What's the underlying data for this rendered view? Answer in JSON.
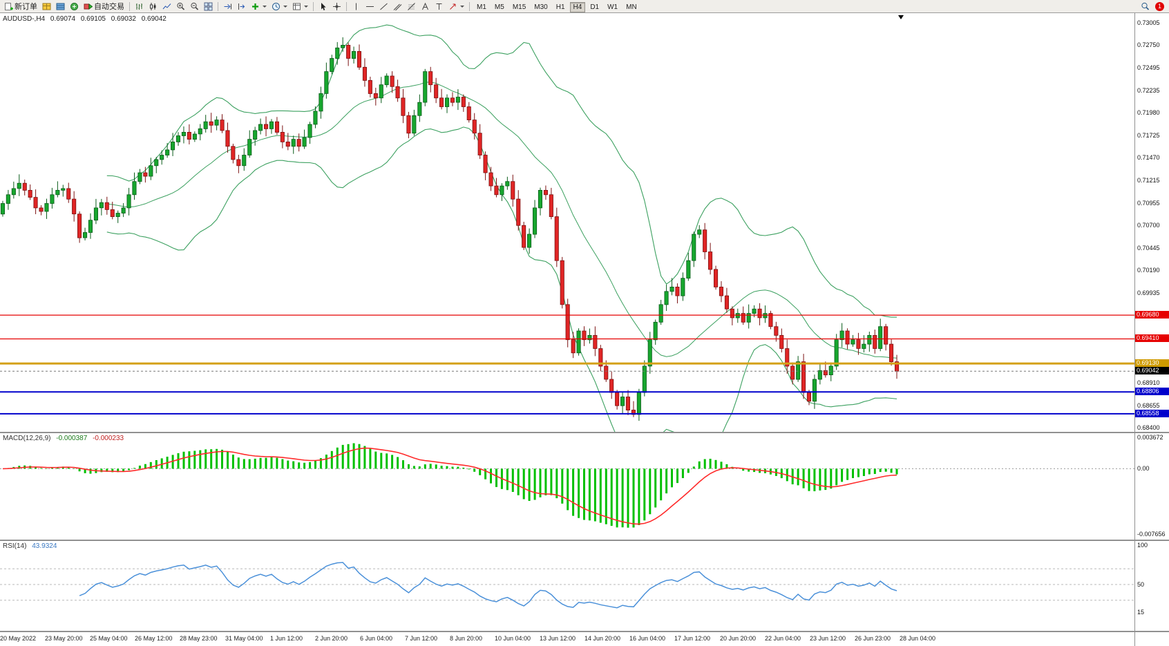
{
  "toolbar": {
    "new_order_label": "新订单",
    "autotrade_label": "自动交易",
    "timeframes": [
      "M1",
      "M5",
      "M15",
      "M30",
      "H1",
      "H4",
      "D1",
      "W1",
      "MN"
    ],
    "active_timeframe": "H4",
    "notification_count": "1",
    "icons": [
      "new-order",
      "market-watch",
      "data-window",
      "navigator",
      "autotrade",
      "bars-chart",
      "candlestick-chart",
      "line-chart",
      "zoom-in",
      "zoom-out",
      "tile-windows",
      "auto-scroll",
      "chart-shift",
      "indicators",
      "periods",
      "templates",
      "cursor",
      "crosshair",
      "vertical-line",
      "horizontal-line",
      "trendline",
      "equidistant-channel",
      "fibonacci",
      "text",
      "text-label",
      "arrows",
      "search"
    ]
  },
  "chart": {
    "symbol_period": "AUDUSD-,H4",
    "ohlc": {
      "open": "0.69074",
      "high": "0.69105",
      "low": "0.69032",
      "close": "0.69042"
    },
    "price_axis": {
      "labels": [
        "0.73005",
        "0.72750",
        "0.72495",
        "0.72235",
        "0.71980",
        "0.71725",
        "0.71470",
        "0.71215",
        "0.70955",
        "0.70700",
        "0.70445",
        "0.70190",
        "0.69935",
        "0.68910",
        "0.68655",
        "0.68400"
      ],
      "badges": [
        {
          "value": "0.69680",
          "price": 0.6968,
          "color": "#e60000"
        },
        {
          "value": "0.69410",
          "price": 0.6941,
          "color": "#e60000"
        },
        {
          "value": "0.69130",
          "price": 0.6913,
          "color": "#cf9a00"
        },
        {
          "value": "0.69042",
          "price": 0.69042,
          "color": "#000000"
        },
        {
          "value": "0.68806",
          "price": 0.68806,
          "color": "#0000cc"
        },
        {
          "value": "0.68558",
          "price": 0.68558,
          "color": "#0000cc"
        }
      ]
    },
    "hlines": [
      {
        "price": 0.6968,
        "color": "#e60000",
        "width": 1.3
      },
      {
        "price": 0.6941,
        "color": "#e60000",
        "width": 1.3
      },
      {
        "price": 0.6913,
        "color": "#d4a017",
        "width": 3
      },
      {
        "price": 0.68806,
        "color": "#0000cc",
        "width": 2
      },
      {
        "price": 0.68558,
        "color": "#0000cc",
        "width": 2
      }
    ],
    "current_price": {
      "value": "0.69042",
      "price": 0.69042
    }
  },
  "indicators": {
    "macd": {
      "name": "MACD(12,26,9)",
      "value_main": "-0.000387",
      "value_signal": "-0.000233",
      "scale": [
        {
          "text": "0.003672",
          "v": 0.003672
        },
        {
          "text": "0.00",
          "v": 0
        },
        {
          "text": "-0.007656",
          "v": -0.007656
        }
      ]
    },
    "rsi": {
      "name": "RSI(14)",
      "value": "43.9324",
      "scale": [
        {
          "text": "100",
          "v": 100
        },
        {
          "text": "50",
          "v": 50
        },
        {
          "text": "15",
          "v": 15
        }
      ],
      "levels": [
        70,
        50,
        30
      ]
    }
  },
  "time_axis": {
    "labels": [
      "20 May 2022",
      "23 May 20:00",
      "25 May 04:00",
      "26 May 12:00",
      "28 May 23:00",
      "31 May 04:00",
      "1 Jun 12:00",
      "2 Jun 20:00",
      "6 Jun 04:00",
      "7 Jun 12:00",
      "8 Jun 20:00",
      "10 Jun 04:00",
      "13 Jun 12:00",
      "14 Jun 20:00",
      "16 Jun 04:00",
      "17 Jun 12:00",
      "20 Jun 20:00",
      "22 Jun 04:00",
      "23 Jun 12:00",
      "26 Jun 23:00",
      "28 Jun 04:00"
    ]
  },
  "colors": {
    "candle_up": "#17a62e",
    "candle_up_border": "#0a5c1a",
    "candle_down": "#e02525",
    "candle_down_border": "#7c1212",
    "bollinger": "#3ba05f",
    "macd_hist": "#00c000",
    "macd_signal": "#ff2a2a",
    "rsi_line": "#4a90d9",
    "grid_dotted": "#999999"
  },
  "chart_data": {
    "type": "candlestick",
    "symbol": "AUDUSD",
    "timeframe": "H4",
    "y_range": [
      0.684,
      0.73005
    ],
    "closes": [
      0.7095,
      0.7105,
      0.7112,
      0.7118,
      0.711,
      0.7102,
      0.709,
      0.7086,
      0.7095,
      0.7105,
      0.711,
      0.7112,
      0.71,
      0.7083,
      0.7056,
      0.7062,
      0.7076,
      0.709,
      0.7096,
      0.7088,
      0.708,
      0.7084,
      0.709,
      0.7105,
      0.712,
      0.713,
      0.7126,
      0.7138,
      0.7145,
      0.715,
      0.7156,
      0.7165,
      0.7172,
      0.7176,
      0.7168,
      0.7174,
      0.718,
      0.7188,
      0.7184,
      0.719,
      0.7178,
      0.716,
      0.7145,
      0.7138,
      0.715,
      0.7168,
      0.7178,
      0.7185,
      0.718,
      0.7188,
      0.7176,
      0.7165,
      0.716,
      0.7168,
      0.716,
      0.717,
      0.7185,
      0.72,
      0.722,
      0.7245,
      0.726,
      0.7272,
      0.7275,
      0.726,
      0.7268,
      0.725,
      0.7235,
      0.722,
      0.7215,
      0.723,
      0.724,
      0.7228,
      0.7215,
      0.7195,
      0.7175,
      0.7195,
      0.721,
      0.7245,
      0.723,
      0.7215,
      0.7205,
      0.7215,
      0.721,
      0.7216,
      0.7205,
      0.719,
      0.7175,
      0.715,
      0.713,
      0.7115,
      0.7105,
      0.7115,
      0.712,
      0.71,
      0.707,
      0.7045,
      0.706,
      0.709,
      0.711,
      0.7105,
      0.708,
      0.703,
      0.698,
      0.694,
      0.6925,
      0.695,
      0.694,
      0.6945,
      0.693,
      0.691,
      0.6895,
      0.688,
      0.6865,
      0.6875,
      0.686,
      0.6855,
      0.688,
      0.691,
      0.694,
      0.696,
      0.698,
      0.6995,
      0.7,
      0.699,
      0.701,
      0.703,
      0.706,
      0.7065,
      0.704,
      0.702,
      0.7,
      0.699,
      0.6975,
      0.6965,
      0.697,
      0.696,
      0.697,
      0.6975,
      0.6965,
      0.697,
      0.6955,
      0.6945,
      0.693,
      0.691,
      0.6895,
      0.6915,
      0.688,
      0.687,
      0.6895,
      0.6905,
      0.69,
      0.691,
      0.694,
      0.695,
      0.6935,
      0.694,
      0.693,
      0.6935,
      0.6945,
      0.693,
      0.6955,
      0.6935,
      0.6915,
      0.69042
    ],
    "bollinger": {
      "period": 20,
      "deviations": 2
    },
    "macd": {
      "fast": 12,
      "slow": 26,
      "signal": 9
    },
    "rsi": {
      "period": 14
    }
  }
}
